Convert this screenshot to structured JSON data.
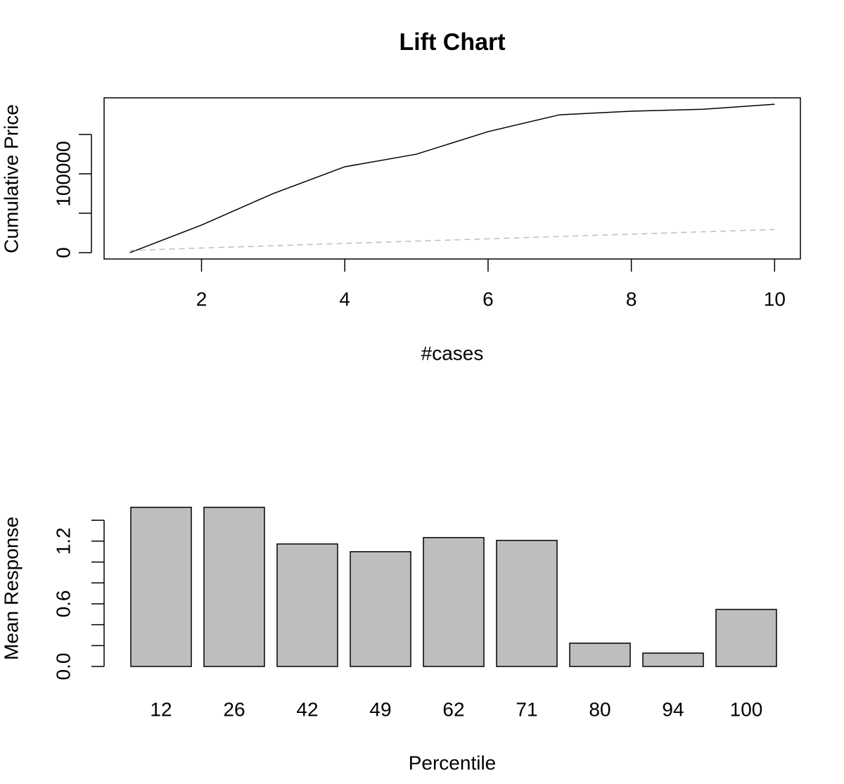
{
  "chart_data": [
    {
      "type": "line",
      "title": "Lift Chart",
      "x_label": "#cases",
      "y_label": "Cumulative Price",
      "x": [
        1,
        2,
        3,
        4,
        5,
        6,
        7,
        8,
        9,
        10
      ],
      "series": [
        {
          "color": "#000000",
          "dashed": false,
          "values": [
            0,
            35000,
            75000,
            109000,
            125000,
            153600,
            175000,
            179500,
            182000,
            188400
          ]
        },
        {
          "color": "#bebebe",
          "dashed": true,
          "values": [
            2900,
            5900,
            8800,
            11800,
            14700,
            17600,
            20600,
            23500,
            26500,
            29400
          ]
        }
      ],
      "xlim": [
        0.64,
        10.36
      ],
      "ylim": [
        -8000,
        196500
      ],
      "xticks": [
        2,
        4,
        6,
        8,
        10
      ],
      "yticks": [
        0,
        100000
      ],
      "yminor_ticks": [
        50000,
        150000
      ],
      "box": true
    },
    {
      "type": "bar",
      "x_label": "Percentile",
      "y_label": "Mean Response",
      "categories": [
        "12",
        "26",
        "42",
        "49",
        "62",
        "71",
        "80",
        "94",
        "100"
      ],
      "values": [
        1.524,
        1.524,
        1.173,
        1.099,
        1.234,
        1.207,
        0.223,
        0.128,
        0.546
      ],
      "color": "#bebebe",
      "ylim": [
        0,
        1.55
      ],
      "yticks": [
        {
          "value": 0,
          "label": "0.0"
        },
        {
          "value": 0.6,
          "label": "0.6"
        },
        {
          "value": 1.2,
          "label": "1.2"
        }
      ],
      "yminor_ticks": [
        0.2,
        0.4,
        0.8,
        1.0,
        1.4
      ],
      "box": false
    }
  ]
}
